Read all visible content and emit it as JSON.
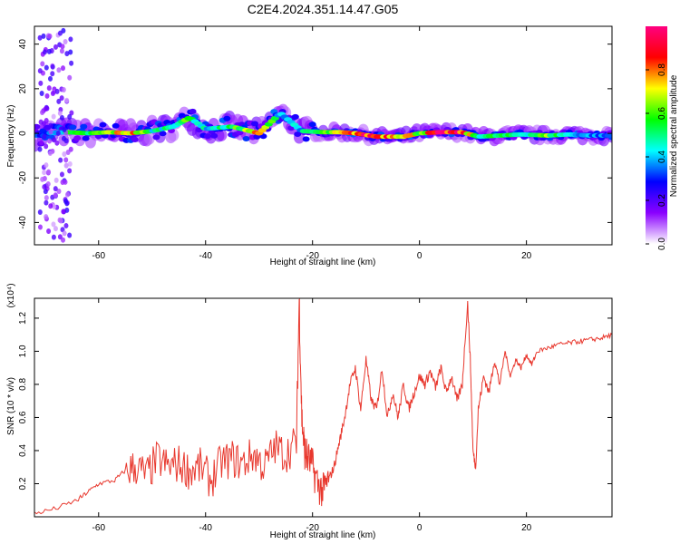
{
  "title": "C2E4.2024.351.14.47.G05",
  "chart_data": [
    {
      "type": "heatmap",
      "xlabel": "Height of straight line (km)",
      "ylabel": "Frequency (Hz)",
      "xlim": [
        -72,
        36
      ],
      "ylim": [
        -50,
        48
      ],
      "x_ticks": [
        -60,
        -40,
        -20,
        0,
        20
      ],
      "x_tick_labels": [
        "-60",
        "-40",
        "-20",
        "0",
        "20"
      ],
      "y_ticks": [
        -40,
        -20,
        0,
        20,
        40
      ],
      "y_tick_labels": [
        "-40",
        "-20",
        "0",
        "20",
        "40"
      ],
      "colorbar": {
        "label": "Normalized spectral amplitude",
        "range": [
          0,
          1
        ],
        "ticks": [
          0.0,
          0.2,
          0.4,
          0.6,
          0.8
        ],
        "tick_labels": [
          "0.0",
          "0.2",
          "0.4",
          "0.6",
          "0.8"
        ],
        "colormap": [
          "#ffffff",
          "#8a00ff",
          "#0000ff",
          "#00ffff",
          "#00ff00",
          "#ffff00",
          "#ff0000",
          "#ff0080"
        ]
      },
      "ridge": [
        {
          "x": -70,
          "f": 0.0,
          "a": 0.3
        },
        {
          "x": -66,
          "f": 0.5,
          "a": 0.55
        },
        {
          "x": -62,
          "f": 0.0,
          "a": 0.55
        },
        {
          "x": -58,
          "f": 0.5,
          "a": 0.7
        },
        {
          "x": -54,
          "f": 0.0,
          "a": 0.85
        },
        {
          "x": -50,
          "f": 1.0,
          "a": 0.5
        },
        {
          "x": -46,
          "f": 3.0,
          "a": 0.55
        },
        {
          "x": -43,
          "f": 7.0,
          "a": 0.6
        },
        {
          "x": -40,
          "f": 2.0,
          "a": 0.45
        },
        {
          "x": -35,
          "f": 3.0,
          "a": 0.55
        },
        {
          "x": -30,
          "f": 0.0,
          "a": 0.8
        },
        {
          "x": -26,
          "f": 9.0,
          "a": 0.45
        },
        {
          "x": -22,
          "f": 1.0,
          "a": 0.45
        },
        {
          "x": -18,
          "f": 0.5,
          "a": 0.6
        },
        {
          "x": -15,
          "f": 0.5,
          "a": 0.7
        },
        {
          "x": -12,
          "f": 0.0,
          "a": 0.9
        },
        {
          "x": -8,
          "f": -1.5,
          "a": 0.95
        },
        {
          "x": -3,
          "f": -1.5,
          "a": 0.85
        },
        {
          "x": 0,
          "f": 0.0,
          "a": 0.7
        },
        {
          "x": 4,
          "f": 0.5,
          "a": 0.95
        },
        {
          "x": 8,
          "f": 0.5,
          "a": 0.9
        },
        {
          "x": 11,
          "f": -1.5,
          "a": 0.55
        },
        {
          "x": 15,
          "f": -1.0,
          "a": 0.55
        },
        {
          "x": 19,
          "f": -0.5,
          "a": 0.5
        },
        {
          "x": 24,
          "f": -1.0,
          "a": 0.65
        },
        {
          "x": 28,
          "f": -0.5,
          "a": 0.45
        },
        {
          "x": 32,
          "f": -1.0,
          "a": 0.4
        },
        {
          "x": 35,
          "f": -1.0,
          "a": 0.35
        }
      ]
    },
    {
      "type": "line",
      "xlabel": "Height of straight line (km)",
      "ylabel": "SNR (10 * v/v)",
      "yscale_label": "(x10⁴)",
      "xlim": [
        -72,
        36
      ],
      "ylim": [
        0,
        1.32
      ],
      "x_ticks": [
        -60,
        -40,
        -20,
        0,
        20
      ],
      "x_tick_labels": [
        "-60",
        "-40",
        "-20",
        "0",
        "20"
      ],
      "y_ticks": [
        0.2,
        0.4,
        0.6,
        0.8,
        1.0,
        1.2
      ],
      "y_tick_labels": [
        "0.2",
        "0.4",
        "0.6",
        "0.8",
        "1.0",
        "1.2"
      ],
      "series": [
        {
          "color": "#e8382e",
          "x": [
            -72,
            -68,
            -64,
            -62,
            -60,
            -57,
            -55,
            -53,
            -51,
            -49,
            -47,
            -45,
            -43,
            -41,
            -39,
            -37,
            -35,
            -33,
            -31,
            -29,
            -27,
            -25,
            -23,
            -22.5,
            -22,
            -21.5,
            -21,
            -20,
            -19,
            -18,
            -17,
            -16,
            -15,
            -14,
            -13,
            -12,
            -11,
            -10,
            -9,
            -8,
            -7,
            -6,
            -5,
            -4,
            -3,
            -2,
            -1,
            0,
            1,
            2,
            3,
            4,
            5,
            6,
            7,
            8,
            9,
            9.5,
            10,
            10.5,
            11,
            12,
            13,
            14,
            15,
            16,
            17,
            18,
            19,
            20,
            21,
            22,
            24,
            26,
            28,
            30,
            32,
            34,
            36
          ],
          "y": [
            0.02,
            0.05,
            0.1,
            0.15,
            0.2,
            0.22,
            0.28,
            0.3,
            0.25,
            0.35,
            0.3,
            0.32,
            0.28,
            0.3,
            0.22,
            0.33,
            0.35,
            0.32,
            0.38,
            0.3,
            0.42,
            0.38,
            0.45,
            1.32,
            0.6,
            0.4,
            0.36,
            0.3,
            0.2,
            0.15,
            0.22,
            0.3,
            0.45,
            0.6,
            0.8,
            0.9,
            0.65,
            0.95,
            0.7,
            0.65,
            0.9,
            0.6,
            0.75,
            0.6,
            0.8,
            0.65,
            0.75,
            0.85,
            0.8,
            0.88,
            0.78,
            0.9,
            0.75,
            0.85,
            0.7,
            0.8,
            1.3,
            0.95,
            0.4,
            0.3,
            0.65,
            0.85,
            0.75,
            0.95,
            0.8,
            1.0,
            0.85,
            0.95,
            0.9,
            0.98,
            0.92,
            1.0,
            1.02,
            1.04,
            1.05,
            1.06,
            1.07,
            1.08,
            1.1
          ]
        }
      ]
    }
  ]
}
